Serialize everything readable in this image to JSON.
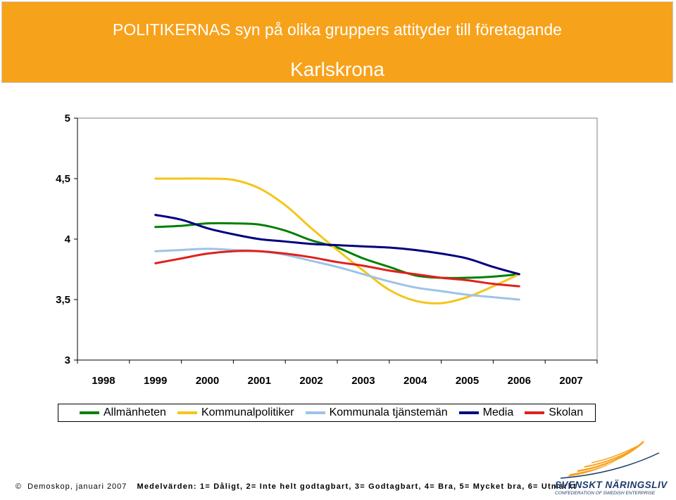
{
  "header": {
    "title": "POLITIKERNAS syn på olika gruppers attityder till företagande",
    "subtitle": "Karlskrona"
  },
  "chart_data": {
    "type": "line",
    "title": "POLITIKERNAS syn på olika gruppers attityder till företagande",
    "subtitle": "Karlskrona",
    "categories": [
      "1998",
      "1999",
      "2000",
      "2001",
      "2002",
      "2003",
      "2004",
      "2005",
      "2006",
      "2007"
    ],
    "x": [
      1999,
      1999.5,
      2000,
      2000.5,
      2001,
      2001.5,
      2002,
      2002.5,
      2003,
      2003.5,
      2004,
      2004.5,
      2005,
      2005.5,
      2006
    ],
    "ylim": [
      3,
      5
    ],
    "y_ticks": [
      "3",
      "3,5",
      "4",
      "4,5",
      "5"
    ],
    "legend_position": "bottom",
    "grid": false,
    "series": [
      {
        "name": "Allmänheten",
        "color": "#008000",
        "values": [
          4.1,
          4.11,
          4.13,
          4.13,
          4.12,
          4.07,
          3.99,
          3.93,
          3.84,
          3.77,
          3.7,
          3.68,
          3.68,
          3.69,
          3.71
        ]
      },
      {
        "name": "Kommunalpolitiker",
        "color": "#f5c518",
        "values": [
          4.5,
          4.5,
          4.5,
          4.49,
          4.42,
          4.28,
          4.09,
          3.91,
          3.74,
          3.58,
          3.49,
          3.47,
          3.52,
          3.61,
          3.71
        ]
      },
      {
        "name": "Kommunala tjänstemän",
        "color": "#9dc3e6",
        "values": [
          3.9,
          3.91,
          3.92,
          3.91,
          3.9,
          3.87,
          3.82,
          3.77,
          3.71,
          3.65,
          3.6,
          3.57,
          3.54,
          3.52,
          3.5
        ]
      },
      {
        "name": "Media",
        "color": "#000080",
        "values": [
          4.2,
          4.16,
          4.09,
          4.04,
          4.0,
          3.98,
          3.96,
          3.95,
          3.94,
          3.93,
          3.91,
          3.88,
          3.84,
          3.77,
          3.71
        ]
      },
      {
        "name": "Skolan",
        "color": "#e0201c",
        "values": [
          3.8,
          3.84,
          3.88,
          3.9,
          3.9,
          3.88,
          3.85,
          3.81,
          3.78,
          3.74,
          3.71,
          3.68,
          3.66,
          3.63,
          3.61
        ]
      }
    ]
  },
  "footer": {
    "copyright_symbol": "©",
    "source": "Demoskop, januari 2007",
    "scale_note": "Medelvärden: 1= Dåligt, 2= Inte helt godtagbart, 3= Godtagbart, 4= Bra, 5= Mycket bra, 6= Utmärkt"
  },
  "logo": {
    "name": "SVENSKT NÄRINGSLIV",
    "tagline": "CONFEDERATION OF SWEDISH ENTERPRISE",
    "colors": [
      "#f7a21b",
      "#1d3a6a"
    ]
  }
}
